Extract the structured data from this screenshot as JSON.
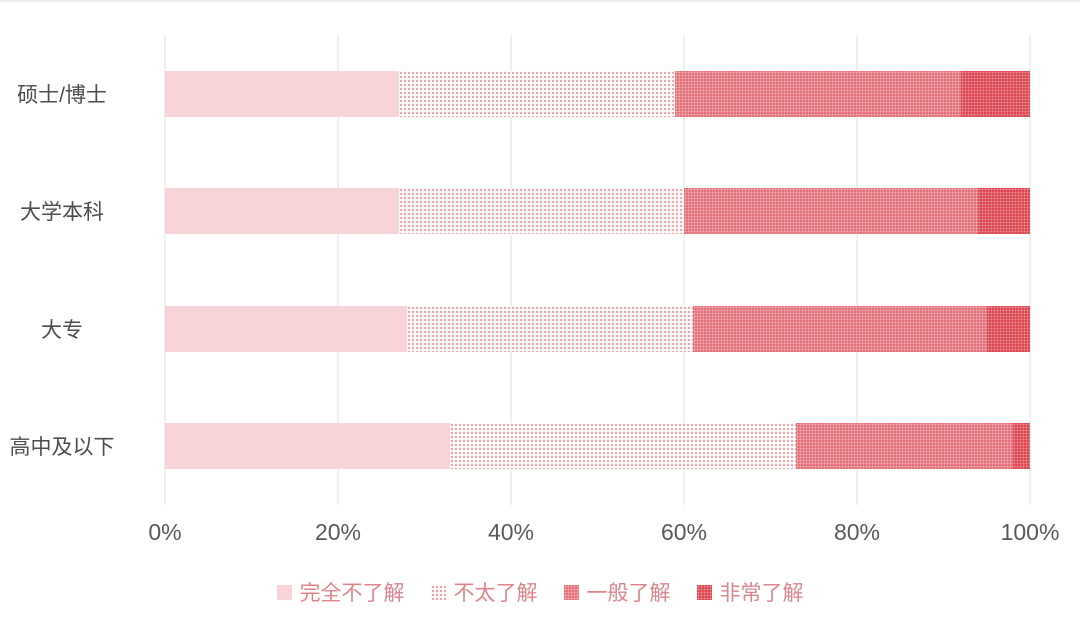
{
  "chart_data": {
    "type": "bar",
    "orientation": "horizontal",
    "stacked": true,
    "title": "",
    "categories": [
      "硕士/博士",
      "大学本科",
      "大专",
      "高中及以下"
    ],
    "series": [
      {
        "name": "完全不了解",
        "values": [
          27,
          27,
          28,
          33
        ],
        "color": "#f8d3d7",
        "pattern": "solid"
      },
      {
        "name": "不太了解",
        "values": [
          32,
          33,
          33,
          40
        ],
        "color": "#efa5ae",
        "pattern": "dots-on-white"
      },
      {
        "name": "一般了解",
        "values": [
          33,
          34,
          34,
          25
        ],
        "color": "#e4737c",
        "pattern": "dense-dots"
      },
      {
        "name": "非常了解",
        "values": [
          8,
          6,
          5,
          2
        ],
        "color": "#dd4a54",
        "pattern": "dense-dots-dark"
      }
    ],
    "x_ticks": [
      "0%",
      "20%",
      "40%",
      "60%",
      "80%",
      "100%"
    ],
    "x_tick_values": [
      0,
      20,
      40,
      60,
      80,
      100
    ],
    "xlim": [
      0,
      100
    ],
    "grid": true,
    "legend_position": "bottom",
    "colors": {
      "grid": "#e2e2e2",
      "axis_text": "#595959",
      "category_text": "#4d4d4d",
      "legend_text": "#de858c",
      "background": "#ffffff"
    }
  }
}
